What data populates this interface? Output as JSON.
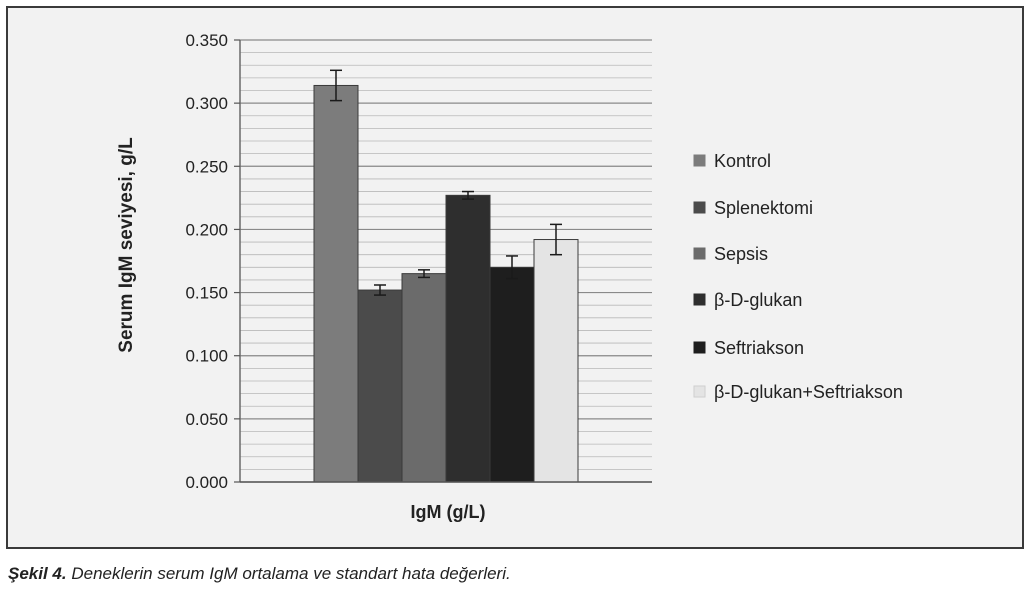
{
  "chart_data": {
    "type": "bar",
    "xlabel": "IgM (g/L)",
    "ylabel": "Serum IgM seviyesi, g/L",
    "ylim": [
      0,
      0.35
    ],
    "yticks": [
      "0.000",
      "0.050",
      "0.100",
      "0.150",
      "0.200",
      "0.250",
      "0.300",
      "0.350"
    ],
    "grid": true,
    "legend_position": "right",
    "series": [
      {
        "name": "Kontrol",
        "value": 0.314,
        "error": 0.012,
        "color": "#7c7c7c"
      },
      {
        "name": "Splenektomi",
        "value": 0.152,
        "error": 0.004,
        "color": "#4b4b4b"
      },
      {
        "name": "Sepsis",
        "value": 0.165,
        "error": 0.003,
        "color": "#6b6b6b"
      },
      {
        "name": "β-D-glukan",
        "value": 0.227,
        "error": 0.003,
        "color": "#2e2e2e"
      },
      {
        "name": "Seftriakson",
        "value": 0.17,
        "error": 0.009,
        "color": "#1e1e1e"
      },
      {
        "name": "β-D-glukan+Seftriakson",
        "value": 0.192,
        "error": 0.012,
        "color": "#e4e4e4"
      }
    ]
  },
  "caption": {
    "label": "Şekil 4.",
    "text": " Deneklerin serum IgM ortalama ve standart hata değerleri."
  }
}
